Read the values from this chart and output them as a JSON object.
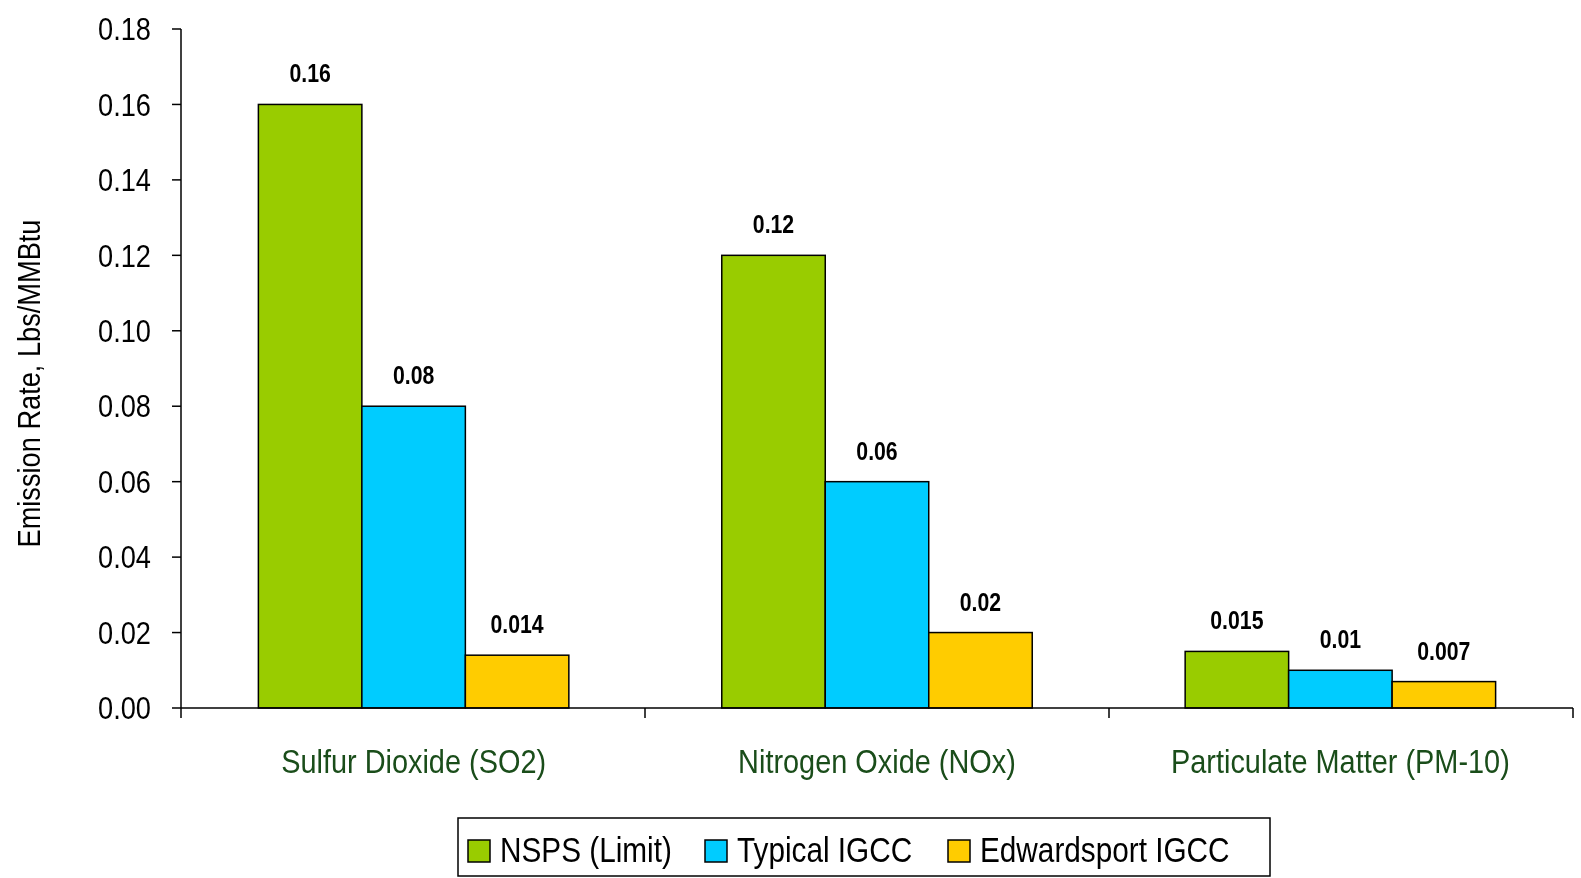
{
  "chart_data": {
    "type": "bar",
    "ylabel": "Emission Rate, Lbs/MMBtu",
    "categories": [
      "Sulfur Dioxide (SO2)",
      "Nitrogen Oxide (NOx)",
      "Particulate Matter (PM-10)"
    ],
    "series": [
      {
        "name": "NSPS (Limit)",
        "color": "#99cc00",
        "values": [
          0.16,
          0.12,
          0.015
        ]
      },
      {
        "name": "Typical IGCC",
        "color": "#00ccff",
        "values": [
          0.08,
          0.06,
          0.01
        ]
      },
      {
        "name": "Edwardsport IGCC",
        "color": "#ffcc00",
        "values": [
          0.014,
          0.02,
          0.007
        ]
      }
    ],
    "ylim": [
      0,
      0.18
    ],
    "yticks": [
      {
        "value": 0,
        "label": "0.00"
      },
      {
        "value": 0.02,
        "label": "0.02"
      },
      {
        "value": 0.04,
        "label": "0.04"
      },
      {
        "value": 0.06,
        "label": "0.06"
      },
      {
        "value": 0.08,
        "label": "0.08"
      },
      {
        "value": 0.1,
        "label": "0.10"
      },
      {
        "value": 0.12,
        "label": "0.12"
      },
      {
        "value": 0.14,
        "label": "0.14"
      },
      {
        "value": 0.16,
        "label": "0.16"
      },
      {
        "value": 0.18,
        "label": "0.18"
      }
    ],
    "data_labels": true,
    "grid": false,
    "legend": "bottom"
  }
}
